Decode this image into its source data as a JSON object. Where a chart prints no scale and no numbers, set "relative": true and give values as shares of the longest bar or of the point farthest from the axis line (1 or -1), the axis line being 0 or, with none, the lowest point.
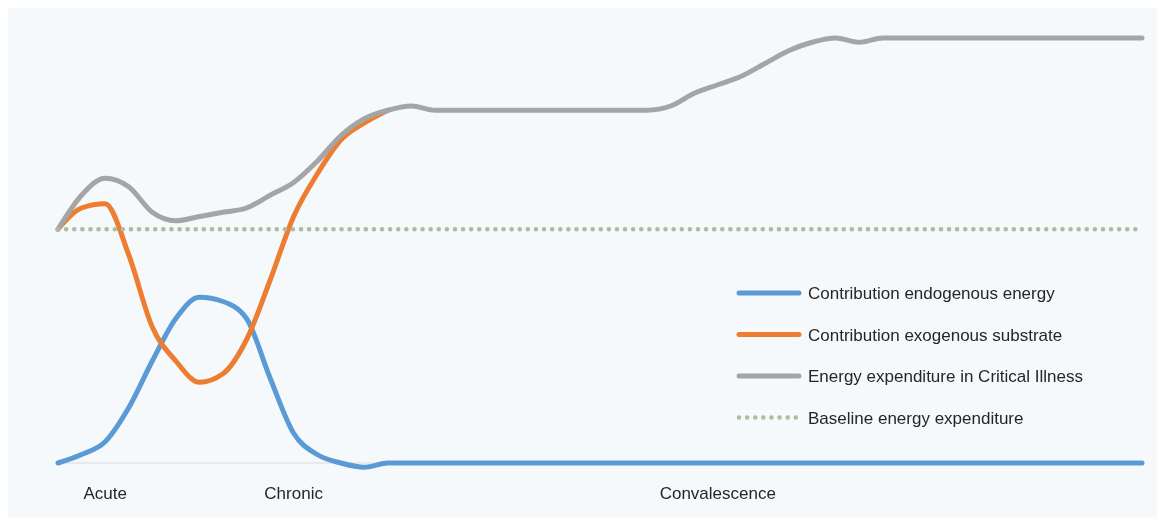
{
  "chart_data": {
    "type": "line",
    "relative": true,
    "legend": "bottom right",
    "categories": [
      null,
      null,
      "Acute",
      null,
      null,
      null,
      null,
      null,
      null,
      null,
      "Chronic",
      null,
      null,
      null,
      null,
      null,
      null,
      null,
      null,
      null,
      null,
      null,
      null,
      null,
      null,
      null,
      null,
      null,
      "Convalescence",
      null,
      null,
      null,
      null,
      null,
      null,
      null,
      null,
      null,
      null,
      null,
      null,
      null,
      null,
      null,
      null,
      null,
      null
    ],
    "series": [
      {
        "name": "Contribution endogenous energy",
        "color": "#5b9bd5",
        "line_style": "solid",
        "values": [
          0,
          0.02,
          0.05,
          0.13,
          0.24,
          0.34,
          0.39,
          0.38,
          0.34,
          0.2,
          0.07,
          0.02,
          0,
          -0.01,
          0,
          0,
          0,
          0,
          0,
          0,
          0,
          0,
          0,
          0,
          0,
          0,
          0,
          0,
          0,
          0,
          0,
          0,
          0,
          0,
          0,
          0,
          0,
          0,
          0,
          0,
          0,
          0,
          0,
          0,
          0,
          0,
          0
        ]
      },
      {
        "name": "Contribution exogenous substrate",
        "color": "#ed7d31",
        "line_style": "solid",
        "values": [
          0.55,
          0.6,
          0.61,
          0.49,
          0.32,
          0.24,
          0.19,
          0.21,
          0.29,
          0.43,
          0.58,
          0.68,
          0.76,
          0.8,
          0.83,
          null,
          null,
          null,
          null,
          null,
          null,
          null,
          null,
          null,
          null,
          null,
          null,
          null,
          null,
          null,
          null,
          null,
          null,
          null,
          null,
          null,
          null,
          null,
          null,
          null,
          null,
          null,
          null,
          null,
          null,
          null,
          null
        ]
      },
      {
        "name": "Energy expenditure in Critical Illness",
        "color": "#a5a5a5",
        "line_style": "solid",
        "values": [
          0.55,
          0.63,
          0.67,
          0.65,
          0.59,
          0.57,
          0.58,
          0.59,
          0.6,
          0.63,
          0.66,
          0.71,
          0.77,
          0.81,
          0.83,
          0.84,
          0.83,
          0.83,
          0.83,
          0.83,
          0.83,
          0.83,
          0.83,
          0.83,
          0.83,
          0.83,
          0.84,
          0.87,
          0.89,
          0.91,
          0.94,
          0.97,
          0.99,
          1,
          0.99,
          1,
          1,
          1,
          1,
          1,
          1,
          1,
          1,
          1,
          1,
          1,
          1
        ]
      },
      {
        "name": "Baseline energy expenditure",
        "color": "#a9bf9b",
        "line_style": "dotted",
        "values": [
          0.55,
          0.55,
          0.55,
          0.55,
          0.55,
          0.55,
          0.55,
          0.55,
          0.55,
          0.55,
          0.55,
          0.55,
          0.55,
          0.55,
          0.55,
          0.55,
          0.55,
          0.55,
          0.55,
          0.55,
          0.55,
          0.55,
          0.55,
          0.55,
          0.55,
          0.55,
          0.55,
          0.55,
          0.55,
          0.55,
          0.55,
          0.55,
          0.55,
          0.55,
          0.55,
          0.55,
          0.55,
          0.55,
          0.55,
          0.55,
          0.55,
          0.55,
          0.55,
          0.55,
          0.55,
          0.55,
          0.55
        ]
      }
    ]
  }
}
